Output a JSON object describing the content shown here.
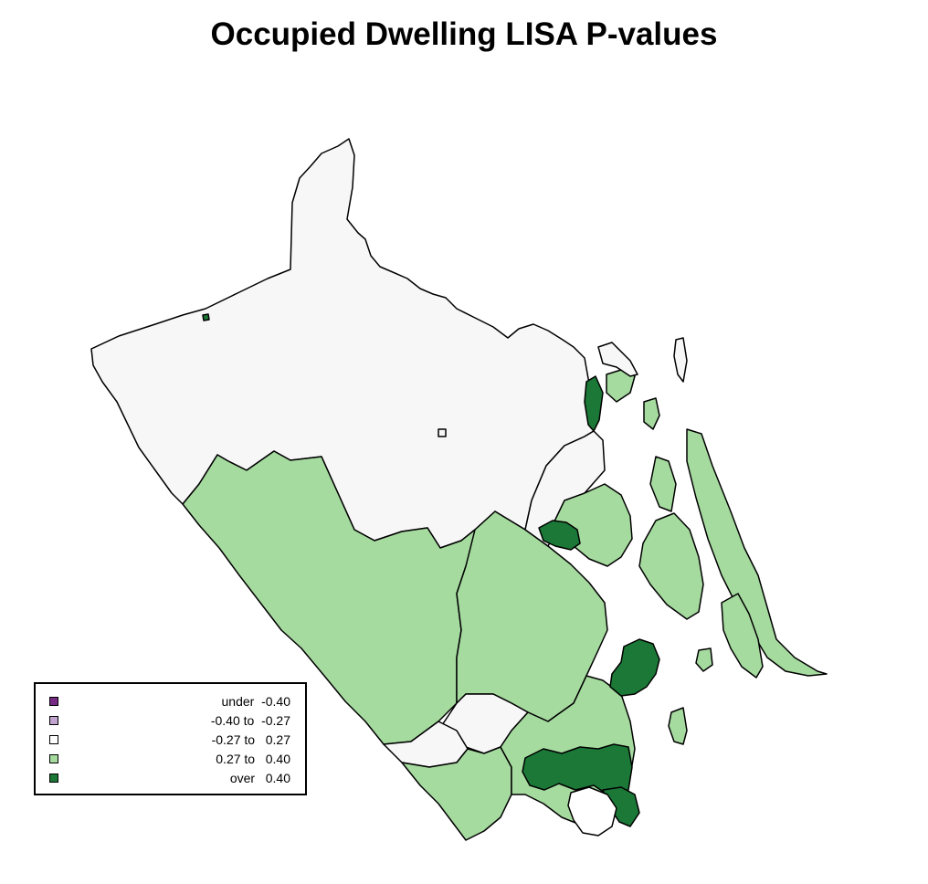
{
  "title": "Occupied Dwelling LISA P-values",
  "colors": {
    "strong_negative": "#762a83",
    "weak_negative": "#c2a5cf",
    "neutral": "#f7f7f7",
    "weak_positive": "#a6dba0",
    "strong_positive": "#1b7837",
    "outline": "#000000"
  },
  "legend": {
    "items": [
      {
        "label": "under  -0.40",
        "color": "#762a83"
      },
      {
        "label": "-0.40 to  -0.27",
        "color": "#c2a5cf"
      },
      {
        "label": "-0.27 to   0.27",
        "color": "#ffffff"
      },
      {
        "label": "0.27 to   0.40",
        "color": "#a6dba0"
      },
      {
        "label": "over   0.40",
        "color": "#1b7837"
      }
    ]
  }
}
